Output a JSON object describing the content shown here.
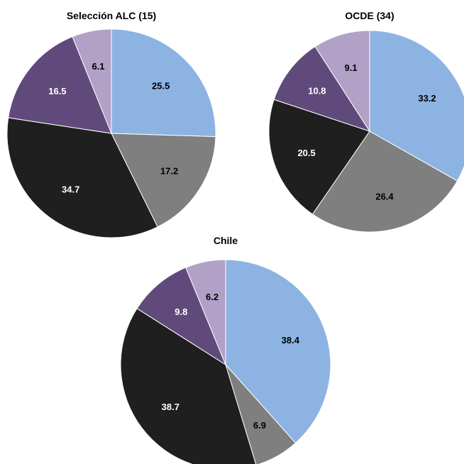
{
  "colors": {
    "light_blue": "#8db3e2",
    "gray": "#7f7f7f",
    "black": "#1f1f1f",
    "purple": "#604a7b",
    "lavender": "#b2a1c7"
  },
  "chart_data": [
    {
      "type": "pie",
      "title": "Selección ALC (15)",
      "start_angle_deg": 0,
      "direction": "clockwise",
      "slices": [
        {
          "value": 25.5,
          "label": "25.5",
          "color": "#8db3e2",
          "label_color": "#000000"
        },
        {
          "value": 17.2,
          "label": "17.2",
          "color": "#7f7f7f",
          "label_color": "#000000"
        },
        {
          "value": 34.7,
          "label": "34.7",
          "color": "#1f1f1f",
          "label_color": "#ffffff"
        },
        {
          "value": 16.5,
          "label": "16.5",
          "color": "#604a7b",
          "label_color": "#ffffff"
        },
        {
          "value": 6.1,
          "label": "6.1",
          "color": "#b2a1c7",
          "label_color": "#000000"
        }
      ]
    },
    {
      "type": "pie",
      "title": "OCDE (34)",
      "start_angle_deg": 0,
      "direction": "clockwise",
      "slices": [
        {
          "value": 33.2,
          "label": "33.2",
          "color": "#8db3e2",
          "label_color": "#000000"
        },
        {
          "value": 26.4,
          "label": "26.4",
          "color": "#7f7f7f",
          "label_color": "#000000"
        },
        {
          "value": 20.5,
          "label": "20.5",
          "color": "#1f1f1f",
          "label_color": "#ffffff"
        },
        {
          "value": 10.8,
          "label": "10.8",
          "color": "#604a7b",
          "label_color": "#ffffff"
        },
        {
          "value": 9.1,
          "label": "9.1",
          "color": "#b2a1c7",
          "label_color": "#000000"
        }
      ]
    },
    {
      "type": "pie",
      "title": "Chile",
      "start_angle_deg": 0,
      "direction": "clockwise",
      "slices": [
        {
          "value": 38.4,
          "label": "38.4",
          "color": "#8db3e2",
          "label_color": "#000000"
        },
        {
          "value": 6.9,
          "label": "6.9",
          "color": "#7f7f7f",
          "label_color": "#000000"
        },
        {
          "value": 38.7,
          "label": "38.7",
          "color": "#1f1f1f",
          "label_color": "#ffffff"
        },
        {
          "value": 9.8,
          "label": "9.8",
          "color": "#604a7b",
          "label_color": "#ffffff"
        },
        {
          "value": 6.2,
          "label": "6.2",
          "color": "#b2a1c7",
          "label_color": "#000000"
        }
      ]
    }
  ]
}
